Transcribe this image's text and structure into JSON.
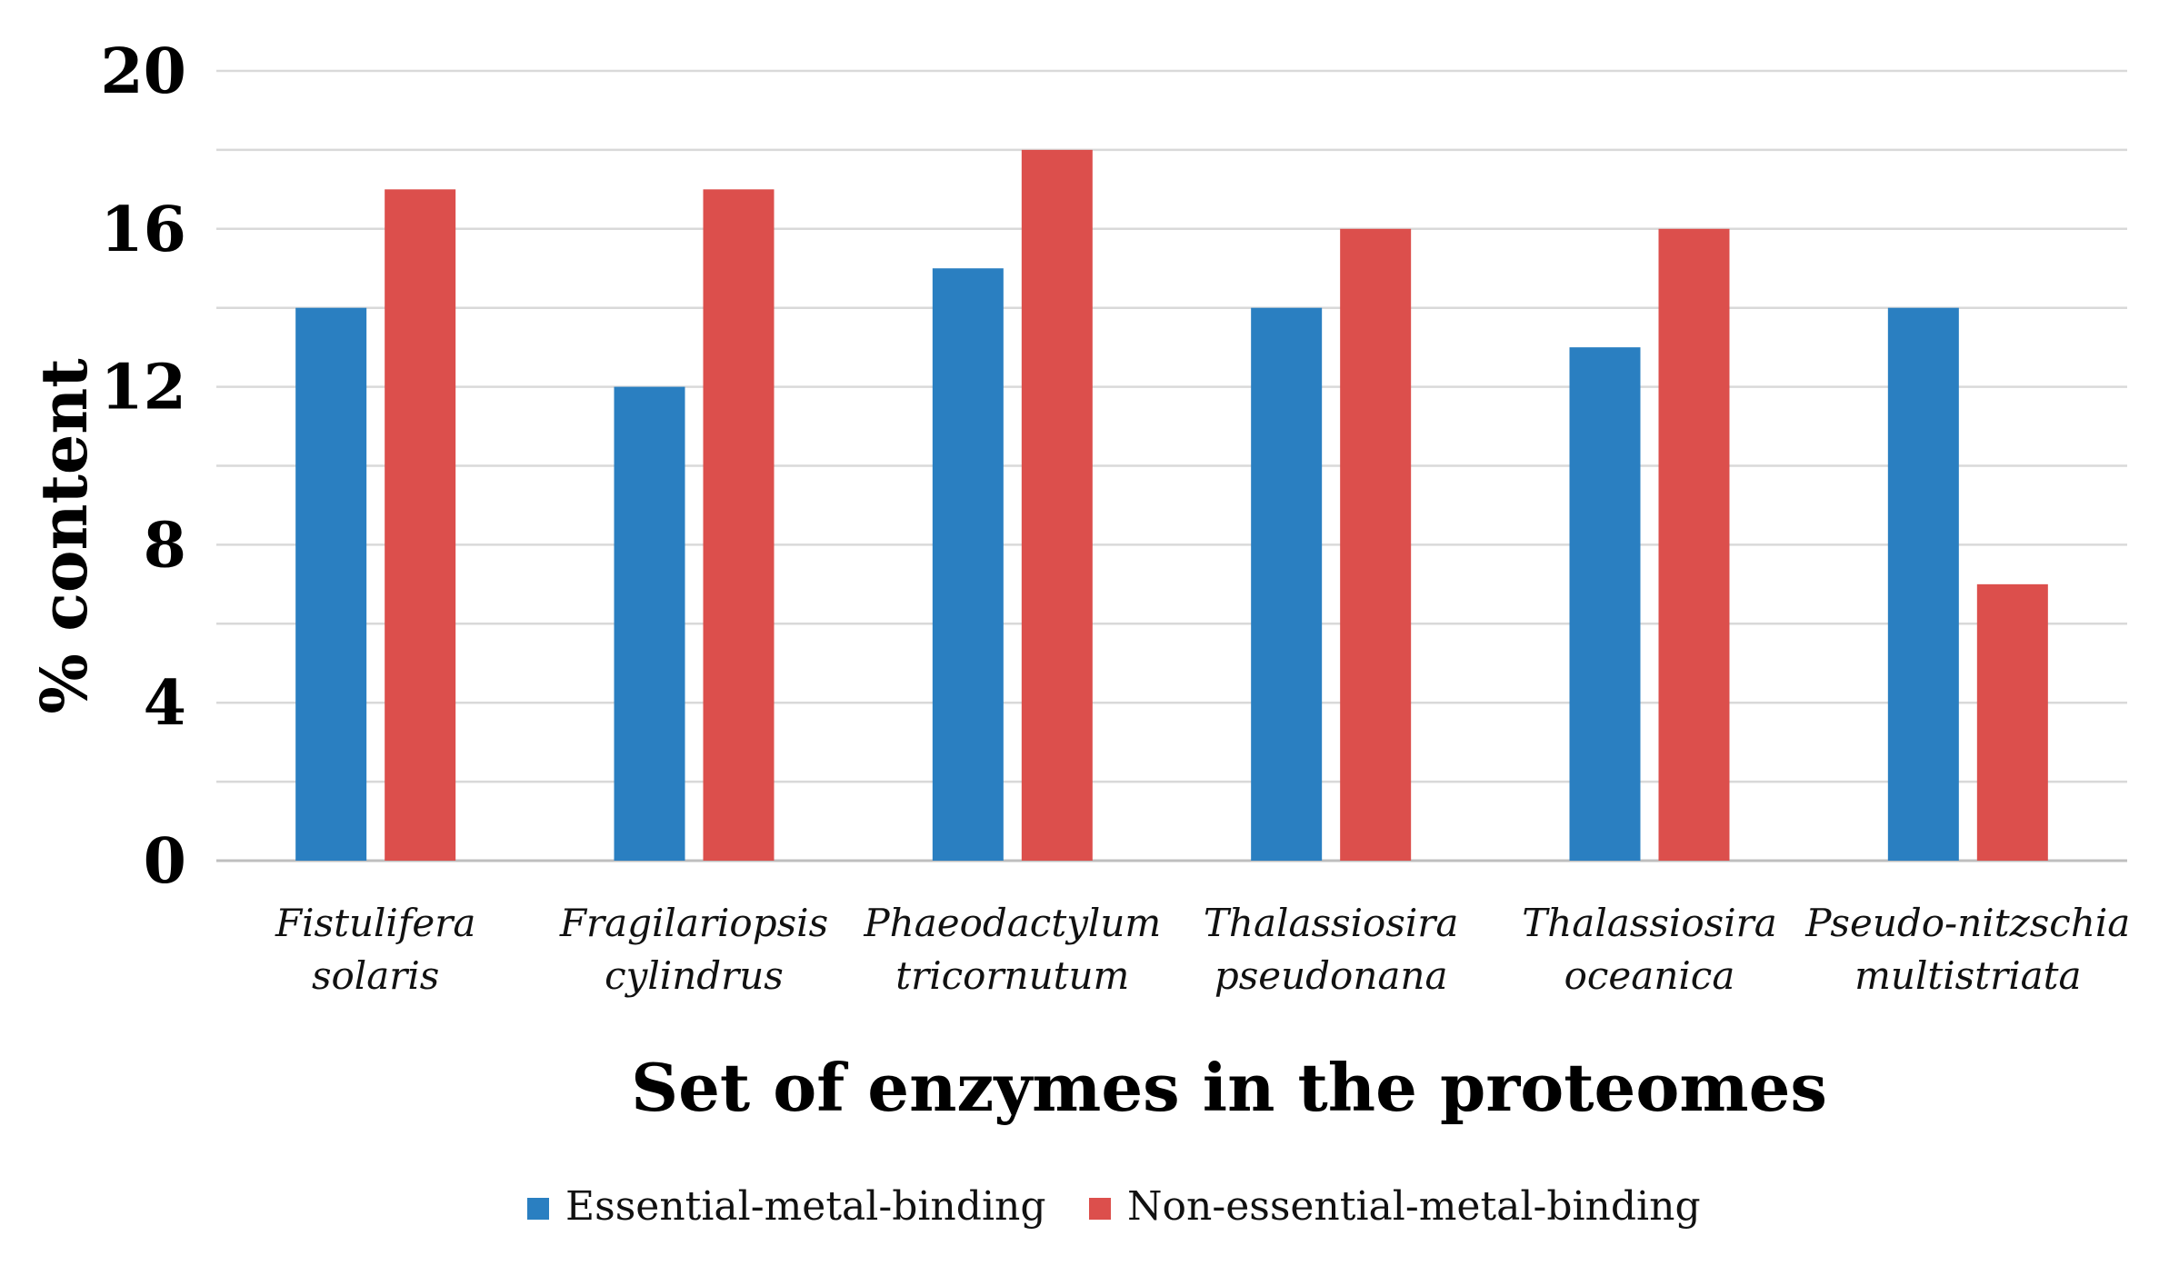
{
  "chart_data": {
    "type": "bar",
    "title": "",
    "xlabel": "Set of enzymes in the proteomes",
    "ylabel": "% content",
    "ylim": [
      0,
      20
    ],
    "yticks": [
      0,
      4,
      8,
      12,
      16,
      20
    ],
    "minor_grid_step": 2,
    "categories": [
      [
        "Fistulifera",
        "solaris"
      ],
      [
        "Fragilariopsis",
        "cylindrus"
      ],
      [
        "Phaeodactylum",
        "tricornutum"
      ],
      [
        "Thalassiosira",
        "pseudonana"
      ],
      [
        "Thalassiosira",
        "oceanica"
      ],
      [
        "Pseudo-nitzschia",
        "multistriata"
      ]
    ],
    "series": [
      {
        "name": "Essential-metal-binding",
        "color": "#2a7fc1",
        "values": [
          14,
          12,
          15,
          14,
          13,
          14
        ]
      },
      {
        "name": "Non-essential-metal-binding",
        "color": "#dc4f4c",
        "values": [
          17,
          17,
          18,
          16,
          16,
          7
        ]
      }
    ],
    "legend_position": "bottom-center",
    "grid": true
  }
}
